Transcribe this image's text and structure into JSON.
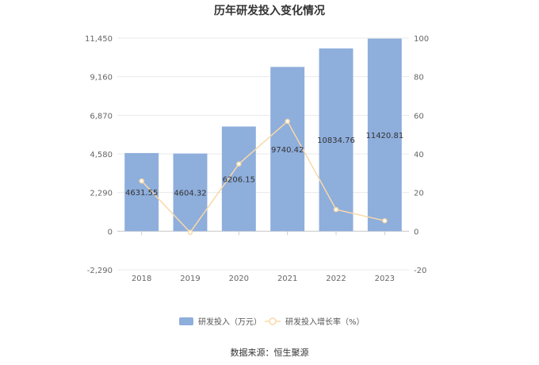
{
  "chart_data": {
    "type": "bar",
    "title": "历年研发投入变化情况",
    "categories": [
      "2018",
      "2019",
      "2020",
      "2021",
      "2022",
      "2023"
    ],
    "series": [
      {
        "name": "研发投入（万元）",
        "type": "bar",
        "axis": "left",
        "color": "#8eaedc",
        "values": [
          4631.55,
          4604.32,
          6206.15,
          9740.42,
          10834.76,
          11420.81
        ],
        "value_labels": [
          "4631.55",
          "4604.32",
          "6206.15",
          "9740.42",
          "10834.76",
          "11420.81"
        ]
      },
      {
        "name": "研发投入增长率（%）",
        "type": "line",
        "axis": "right",
        "color": "#f8d9a8",
        "values": [
          26,
          -0.6,
          34.8,
          56.9,
          11.2,
          5.4
        ]
      }
    ],
    "left_axis": {
      "ylim": [
        -2290,
        11450
      ],
      "ticks": [
        "11,450",
        "9,160",
        "6,870",
        "4,580",
        "2,290",
        "0",
        "-2,290"
      ]
    },
    "right_axis": {
      "ylim": [
        -20,
        100
      ],
      "ticks": [
        "100",
        "80",
        "60",
        "40",
        "20",
        "0",
        "-20"
      ]
    },
    "legend_position": "bottom-center",
    "grid": true
  },
  "source_text": "数据来源：恒生聚源"
}
